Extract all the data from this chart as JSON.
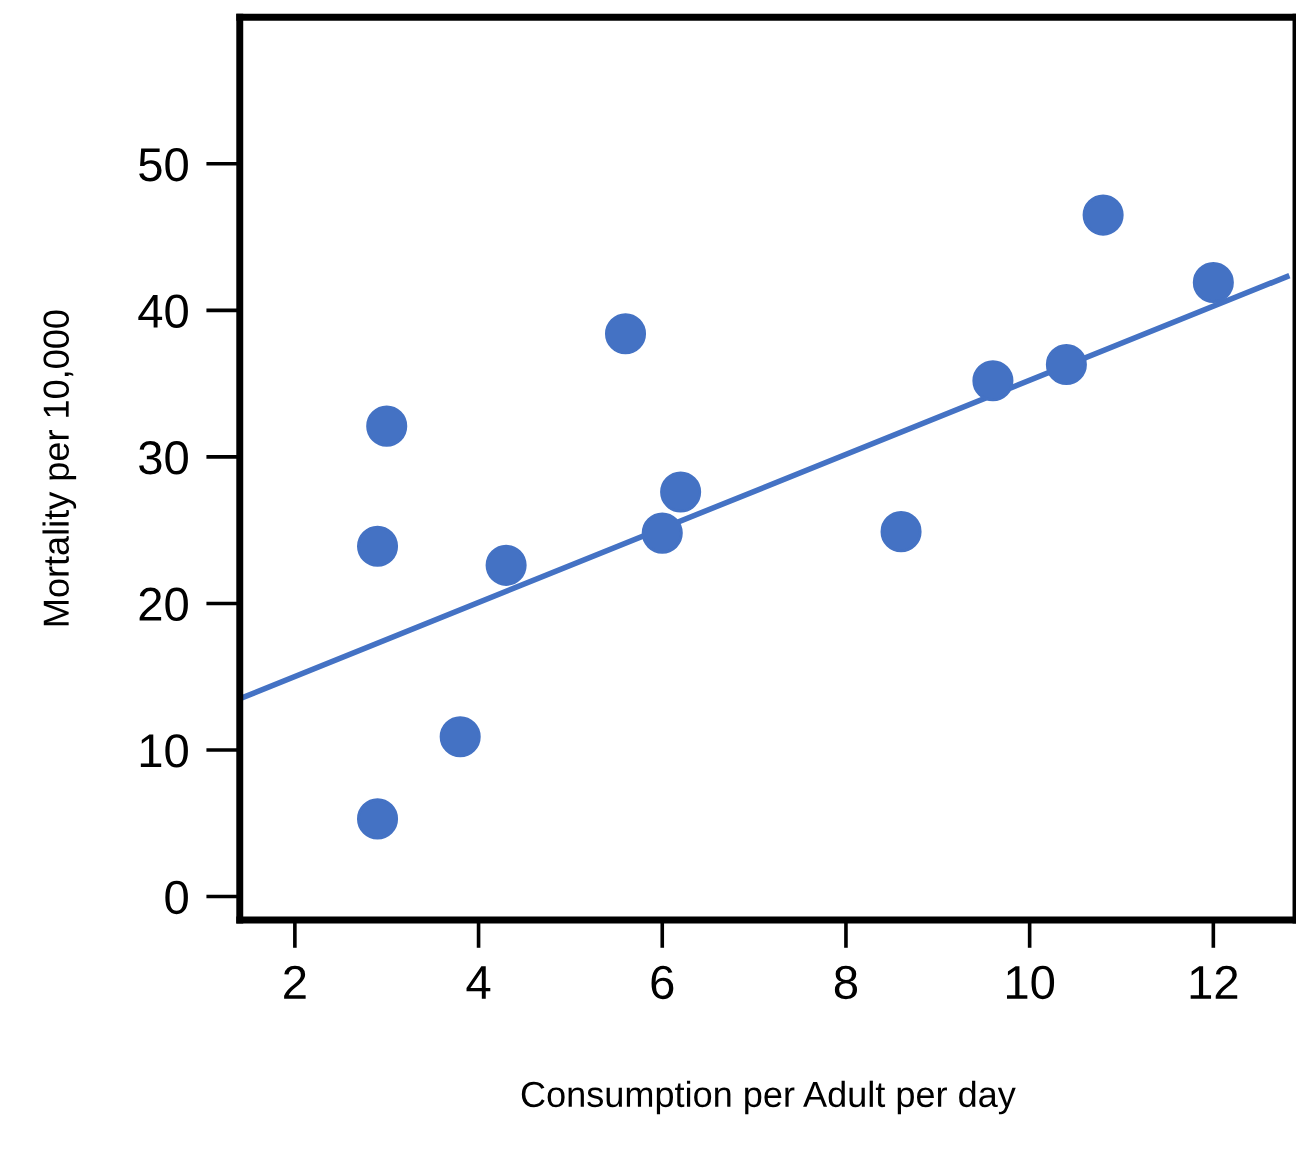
{
  "chart_data": {
    "type": "scatter",
    "xlabel": "Consumption per Adult per day",
    "ylabel": "Mortality per 10,000",
    "xlim": [
      1.4,
      12.9
    ],
    "ylim": [
      -1.6,
      60
    ],
    "xticks": [
      2,
      4,
      6,
      8,
      10,
      12
    ],
    "yticks": [
      0,
      10,
      20,
      30,
      40,
      50
    ],
    "grid": false,
    "series": [
      {
        "color": "#4472c4",
        "marker": "circle",
        "x": [
          2.9,
          2.9,
          3.0,
          3.8,
          4.3,
          5.6,
          6.0,
          6.2,
          8.6,
          9.6,
          10.4,
          10.8,
          12.0
        ],
        "values": [
          5.3,
          23.9,
          32.1,
          10.9,
          22.6,
          38.4,
          24.8,
          27.6,
          24.9,
          35.2,
          36.3,
          46.5,
          41.9
        ]
      },
      {
        "type": "line",
        "color": "#4472c4",
        "x": [
          1.4,
          12.8
        ],
        "values": [
          13.5,
          42.3
        ]
      }
    ]
  }
}
